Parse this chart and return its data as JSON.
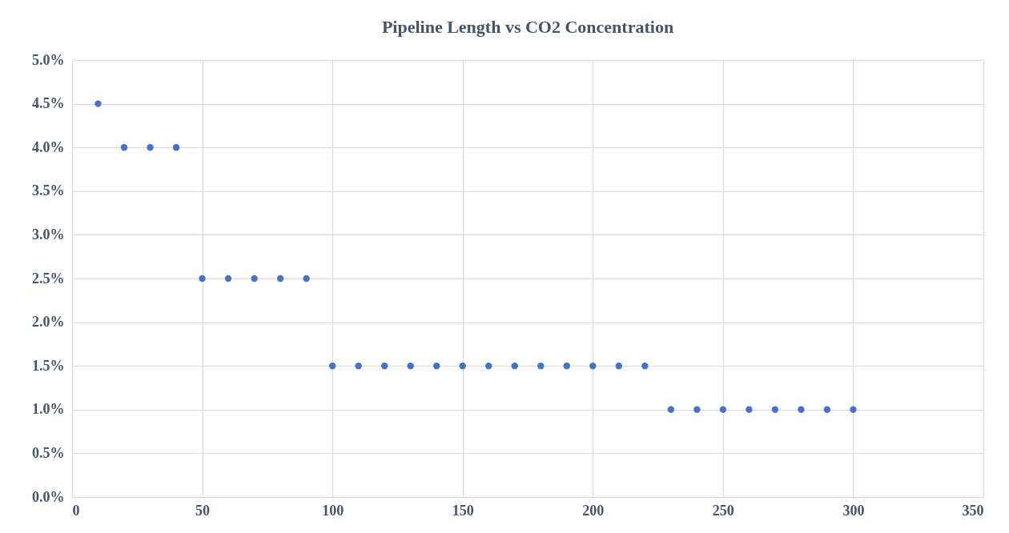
{
  "chart_data": {
    "type": "scatter",
    "title": "Pipeline Length vs CO2 Concentration",
    "x": [
      10,
      20,
      30,
      40,
      50,
      60,
      70,
      80,
      90,
      100,
      110,
      120,
      130,
      140,
      150,
      160,
      170,
      180,
      190,
      200,
      210,
      220,
      230,
      240,
      250,
      260,
      270,
      280,
      290,
      300
    ],
    "series": [
      {
        "color": "#4472c4",
        "values": [
          4.5,
          4.0,
          4.0,
          4.0,
          2.5,
          2.5,
          2.5,
          2.5,
          2.5,
          1.5,
          1.5,
          1.5,
          1.5,
          1.5,
          1.5,
          1.5,
          1.5,
          1.5,
          1.5,
          1.5,
          1.5,
          1.5,
          1.0,
          1.0,
          1.0,
          1.0,
          1.0,
          1.0,
          1.0,
          1.0
        ]
      }
    ],
    "xlim": [
      0,
      350
    ],
    "xticks": [
      0,
      50,
      100,
      150,
      200,
      250,
      300,
      350
    ],
    "ylim": [
      0,
      5
    ],
    "yticks": [
      {
        "value": 0,
        "label": "0.0%"
      },
      {
        "value": 0.5,
        "label": "0.5%"
      },
      {
        "value": 1,
        "label": "1.0%"
      },
      {
        "value": 1.5,
        "label": "1.5%"
      },
      {
        "value": 2,
        "label": "2.0%"
      },
      {
        "value": 2.5,
        "label": "2.5%"
      },
      {
        "value": 3,
        "label": "3.0%"
      },
      {
        "value": 3.5,
        "label": "3.5%"
      },
      {
        "value": 4,
        "label": "4.0%"
      },
      {
        "value": 4.5,
        "label": "4.5%"
      },
      {
        "value": 5,
        "label": "5.0%"
      }
    ],
    "grid": true,
    "marker": "circle"
  }
}
